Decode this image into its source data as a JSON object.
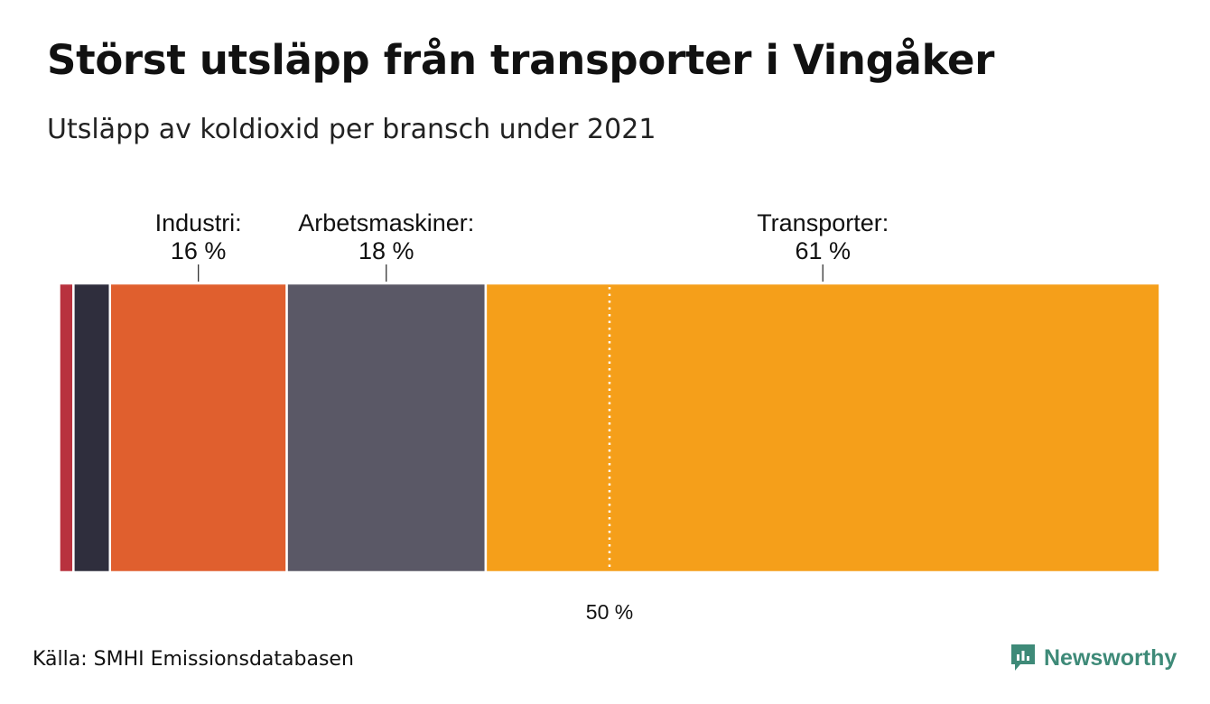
{
  "title": "Störst utsläpp från transporter i Vingåker",
  "subtitle": "Utsläpp av koldioxid per bransch under 2021",
  "source": "Källa: SMHI Emissionsdatabasen",
  "brand": {
    "name": "Newsworthy",
    "logo_icon": "newsworthy-logo-icon",
    "color": "#3e8a78"
  },
  "chart_data": {
    "type": "bar",
    "orientation": "horizontal-stacked-100",
    "unit": "%",
    "reference_line": {
      "value": 50,
      "label": "50 %"
    },
    "segments": [
      {
        "value": 0.2,
        "color": "#8b1a2a"
      },
      {
        "value": 1.3,
        "color": "#b8323e"
      },
      {
        "value": 3.3,
        "color": "#2f2e3d"
      },
      {
        "name": "Industri:",
        "value": 16,
        "value_label": "16 %",
        "color": "#e05f2e"
      },
      {
        "name": "Arbetsmaskiner:",
        "value": 18,
        "value_label": "18 %",
        "color": "#5a5866"
      },
      {
        "name": "Transporter:",
        "value": 61,
        "value_label": "61 %",
        "color": "#f59f1a"
      },
      {
        "value": 0.2,
        "color": "#f7e0c7"
      }
    ]
  }
}
